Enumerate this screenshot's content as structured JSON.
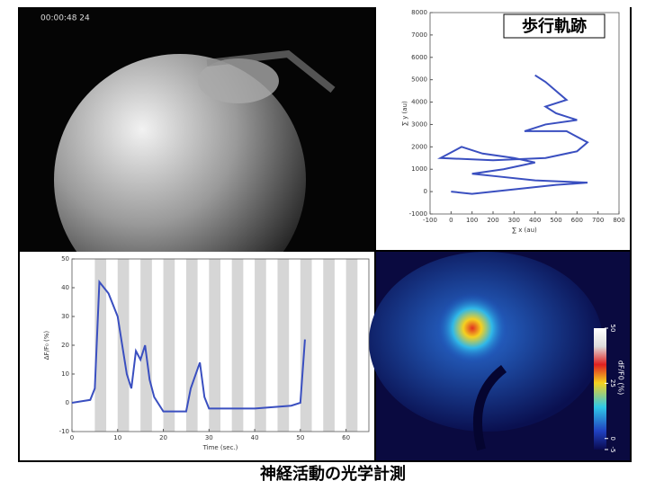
{
  "timestamp": "00:00:48 24",
  "caption": "神経活動の光学計測",
  "chart_data": [
    {
      "type": "line",
      "title": "歩行軌跡",
      "x_label": "∑ x (au)",
      "y_label": "∑ y (au)",
      "xlim": [
        -100,
        800
      ],
      "xticks": [
        -100,
        0,
        100,
        200,
        300,
        400,
        500,
        600,
        700,
        800
      ],
      "ylim": [
        -1000,
        8000
      ],
      "yticks": [
        -1000,
        0,
        1000,
        2000,
        3000,
        4000,
        5000,
        6000,
        7000,
        8000
      ],
      "x": [
        0,
        100,
        300,
        500,
        650,
        400,
        200,
        100,
        250,
        400,
        300,
        150,
        50,
        -50,
        200,
        450,
        600,
        650,
        550,
        350,
        450,
        600,
        500,
        450,
        550,
        500,
        450,
        400
      ],
      "series": [
        {
          "color": "#3a4fc0",
          "values": [
            0,
            -100,
            100,
            300,
            400,
            500,
            700,
            800,
            1000,
            1300,
            1500,
            1700,
            2000,
            1500,
            1400,
            1500,
            1800,
            2200,
            2700,
            2700,
            3000,
            3200,
            3500,
            3800,
            4100,
            4500,
            4900,
            5200
          ]
        }
      ]
    },
    {
      "type": "line",
      "x_label": "Time (sec.)",
      "y_label": "ΔF/F₀ (%)",
      "xlim": [
        0,
        65
      ],
      "xticks": [
        0,
        10,
        20,
        30,
        40,
        50,
        60
      ],
      "ylim": [
        -10,
        50
      ],
      "yticks": [
        -10,
        0,
        10,
        20,
        30,
        40,
        50
      ],
      "shade_color": "#d6d6d6",
      "shaded": [
        [
          5,
          7.5
        ],
        [
          10,
          12.5
        ],
        [
          15,
          17.5
        ],
        [
          20,
          22.5
        ],
        [
          25,
          27.5
        ],
        [
          30,
          32.5
        ],
        [
          35,
          37.5
        ],
        [
          40,
          42.5
        ],
        [
          45,
          47.5
        ],
        [
          50,
          52.5
        ],
        [
          55,
          57.5
        ],
        [
          60,
          62.5
        ]
      ],
      "x": [
        0,
        2,
        4,
        5,
        6,
        8,
        10,
        12,
        13,
        14,
        15,
        16,
        17,
        18,
        20,
        25,
        26,
        28,
        29,
        30,
        40,
        48,
        50,
        51
      ],
      "series": [
        {
          "color": "#3a4fc0",
          "values": [
            0,
            0.5,
            1,
            5,
            42,
            38,
            30,
            10,
            5,
            18,
            15,
            20,
            8,
            2,
            -3,
            -3,
            5,
            14,
            2,
            -2,
            -2,
            -1,
            0,
            22
          ]
        }
      ]
    }
  ],
  "colorbar": {
    "label": "dF/F0 (%)",
    "lim": [
      -5,
      50
    ],
    "ticks": [
      50,
      25,
      0,
      -5
    ]
  }
}
